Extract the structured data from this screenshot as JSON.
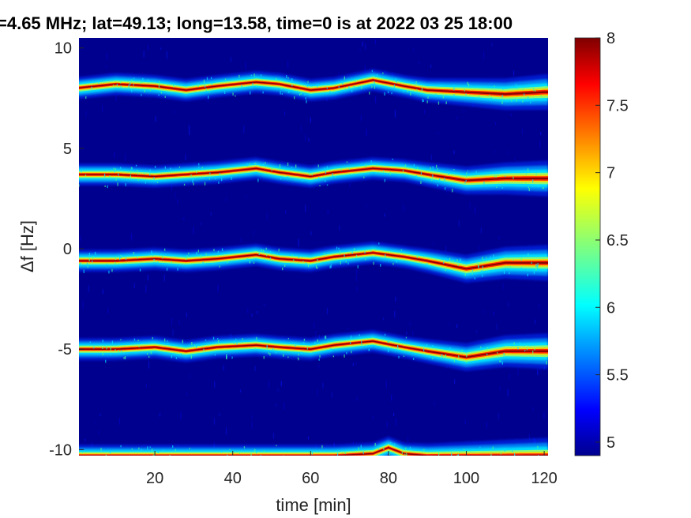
{
  "chart_data": {
    "type": "heatmap",
    "title": "=4.65 MHz;  lat=49.13; long=13.58, time=0 is at 2022 03 25 18:00",
    "xlabel": "time [min]",
    "ylabel": "Δf [Hz]",
    "xlim": [
      0.5,
      121
    ],
    "ylim": [
      -10.3,
      10.5
    ],
    "xticks": [
      20,
      40,
      60,
      80,
      100,
      120
    ],
    "yticks": [
      10,
      5,
      0,
      -5,
      -10
    ],
    "colorbar": {
      "range": [
        4.9,
        8
      ],
      "ticks": [
        "8",
        "7.5",
        "7",
        "6.5",
        "6",
        "5.5",
        "5"
      ],
      "tick_values": [
        8,
        7.5,
        7,
        6.5,
        6,
        5.5,
        5
      ],
      "colormap": "jet",
      "background_value": 4.95
    },
    "colors": {
      "background": "#00008f",
      "jet": [
        "#00008f",
        "#0000ff",
        "#007fff",
        "#00ffff",
        "#7fff7f",
        "#ffff00",
        "#ff7f00",
        "#ff0000",
        "#7f0000"
      ]
    },
    "series": [
      {
        "time": [
          0,
          10,
          20,
          28,
          36,
          46,
          52,
          60,
          66,
          76,
          84,
          90,
          100,
          110,
          120
        ],
        "freq": [
          8.0,
          8.2,
          8.1,
          7.9,
          8.1,
          8.3,
          8.2,
          7.9,
          8.0,
          8.4,
          8.1,
          7.9,
          7.8,
          7.7,
          7.8
        ]
      },
      {
        "time": [
          0,
          10,
          20,
          28,
          36,
          46,
          52,
          60,
          66,
          76,
          84,
          90,
          100,
          110,
          120
        ],
        "freq": [
          3.7,
          3.7,
          3.6,
          3.7,
          3.8,
          4.0,
          3.8,
          3.6,
          3.8,
          4.0,
          3.9,
          3.7,
          3.4,
          3.5,
          3.5
        ]
      },
      {
        "time": [
          0,
          10,
          20,
          28,
          36,
          46,
          52,
          60,
          66,
          76,
          84,
          90,
          100,
          110,
          120
        ],
        "freq": [
          -0.6,
          -0.6,
          -0.5,
          -0.6,
          -0.5,
          -0.3,
          -0.5,
          -0.6,
          -0.4,
          -0.2,
          -0.4,
          -0.6,
          -1.0,
          -0.7,
          -0.7
        ]
      },
      {
        "time": [
          0,
          10,
          20,
          28,
          36,
          46,
          52,
          60,
          66,
          76,
          84,
          90,
          100,
          110,
          120
        ],
        "freq": [
          -5.0,
          -5.0,
          -4.9,
          -5.1,
          -4.9,
          -4.8,
          -4.9,
          -5.0,
          -4.8,
          -4.6,
          -4.9,
          -5.1,
          -5.4,
          -5.1,
          -5.1
        ]
      },
      {
        "time": [
          0,
          10,
          20,
          28,
          36,
          46,
          52,
          60,
          66,
          76,
          80,
          84,
          90,
          100,
          110,
          120
        ],
        "freq": [
          -10.3,
          -10.3,
          -10.3,
          -10.3,
          -10.3,
          -10.3,
          -10.3,
          -10.3,
          -10.3,
          -10.2,
          -9.9,
          -10.2,
          -10.3,
          -10.3,
          -10.3,
          -10.3
        ]
      }
    ]
  }
}
